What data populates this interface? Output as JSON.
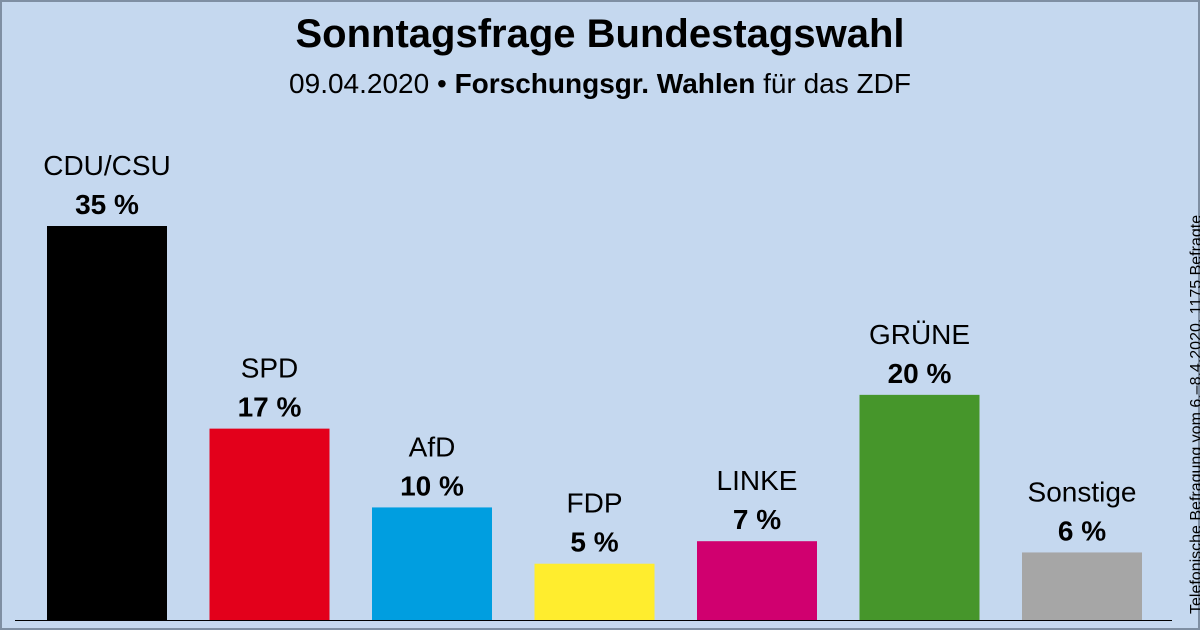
{
  "header": {
    "title": "Sonntagsfrage Bundestagswahl",
    "date": "09.04.2020",
    "separator": "•",
    "source": "Forschungsgr. Wahlen",
    "suffix": "für das ZDF"
  },
  "note": "Telefonische Befragung vom 6.–8.4.2020, 1175 Befragte",
  "chart_data": {
    "type": "bar",
    "title": "Sonntagsfrage Bundestagswahl",
    "unit": "%",
    "categories": [
      "CDU/CSU",
      "SPD",
      "AfD",
      "FDP",
      "LINKE",
      "GRÜNE",
      "Sonstige"
    ],
    "values": [
      35,
      17,
      10,
      5,
      7,
      20,
      6
    ],
    "value_labels": [
      "35 %",
      "17 %",
      "10 %",
      "5 %",
      "7 %",
      "20 %",
      "6 %"
    ],
    "colors": [
      "#000000",
      "#e3001b",
      "#009ee0",
      "#ffed2e",
      "#d0006f",
      "#46962b",
      "#a6a6a6"
    ],
    "ylim": [
      0,
      35
    ],
    "grid": false,
    "legend": "none"
  }
}
